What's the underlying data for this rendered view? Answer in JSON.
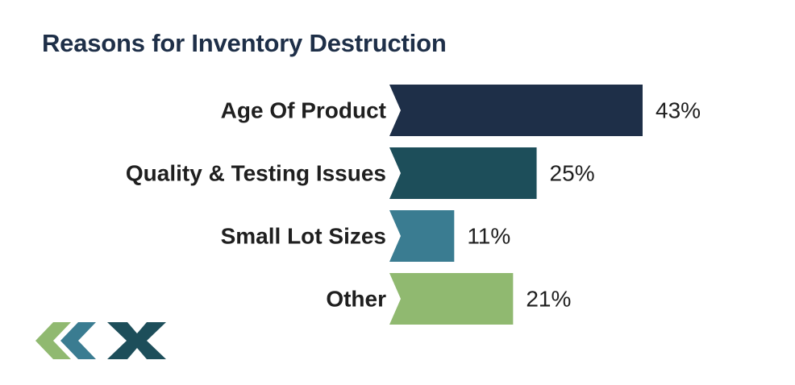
{
  "chart_data": {
    "type": "bar",
    "orientation": "horizontal",
    "title": "Reasons for Inventory Destruction",
    "categories": [
      "Age Of Product",
      "Quality & Testing Issues",
      "Small Lot Sizes",
      "Other"
    ],
    "values": [
      43,
      25,
      11,
      21
    ],
    "value_labels": [
      "43%",
      "25%",
      "11%",
      "21%"
    ],
    "bar_colors": [
      "#1e2f48",
      "#1d4e5a",
      "#3a7c91",
      "#90b970"
    ],
    "xlim": [
      0,
      43
    ],
    "grid": false,
    "legend": "none"
  },
  "colors": {
    "title": "#1e2f48",
    "text": "#1f1f1f",
    "logo_dark": "#1d4e5a",
    "logo_mid": "#3a7c91",
    "logo_light": "#90b970"
  },
  "logo": {
    "icon": "ckx-chevron-logo"
  }
}
